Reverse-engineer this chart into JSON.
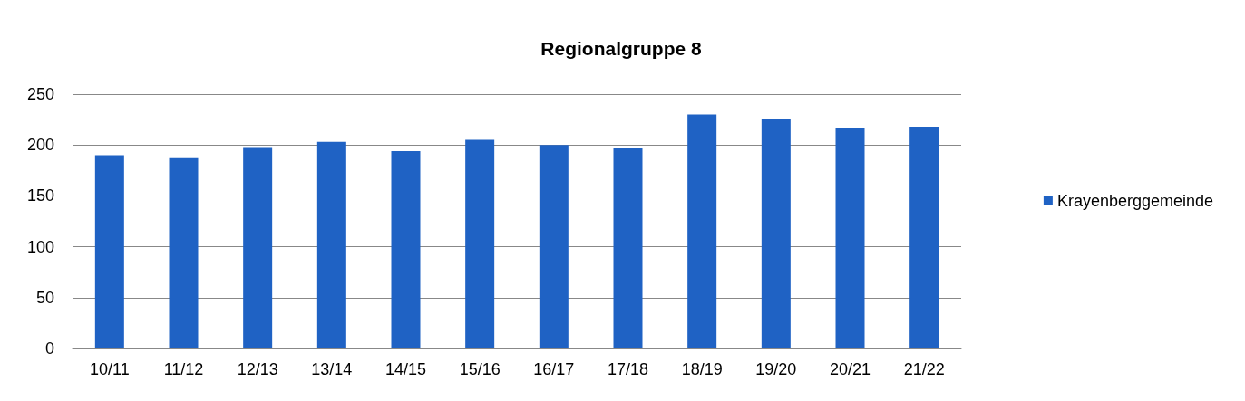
{
  "chart_data": {
    "type": "bar",
    "title": "Regionalgruppe 8",
    "categories": [
      "10/11",
      "11/12",
      "12/13",
      "13/14",
      "14/15",
      "15/16",
      "16/17",
      "17/18",
      "18/19",
      "19/20",
      "20/21",
      "21/22"
    ],
    "series": [
      {
        "name": "Krayenberggemeinde",
        "color": "#1f62c4",
        "values": [
          190,
          188,
          198,
          203,
          194,
          205,
          200,
          197,
          230,
          226,
          217,
          218
        ]
      }
    ],
    "ylim": [
      0,
      250
    ],
    "yticks": [
      0,
      50,
      100,
      150,
      200,
      250
    ],
    "grid": "y",
    "legend": "right"
  }
}
